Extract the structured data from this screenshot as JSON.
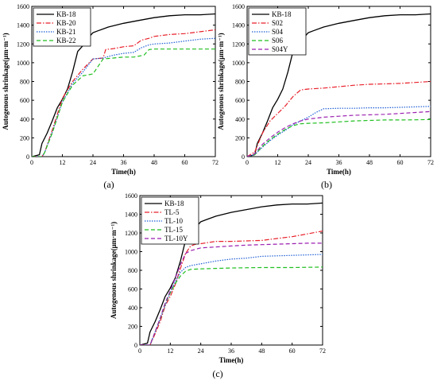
{
  "chart_data": [
    {
      "type": "line",
      "panel_label": "(a)",
      "xlabel": "Time(h)",
      "ylabel": "Autogenous shrinkage(μm·m⁻¹)",
      "xlim": [
        0,
        72
      ],
      "ylim": [
        0,
        1600
      ],
      "xticks": [
        0,
        12,
        24,
        36,
        48,
        60,
        72
      ],
      "yticks": [
        0,
        200,
        400,
        600,
        800,
        1000,
        1200,
        1400,
        1600
      ],
      "grid": false,
      "legend_position": "top-left",
      "series": [
        {
          "name": "KB-18",
          "color": "#000000",
          "dash": "solid",
          "x": [
            0,
            3,
            4,
            6,
            8,
            10,
            12,
            14,
            16,
            18,
            20,
            22,
            24,
            26,
            30,
            36,
            42,
            48,
            54,
            60,
            66,
            72
          ],
          "y": [
            0,
            20,
            140,
            250,
            380,
            520,
            610,
            720,
            900,
            1120,
            1180,
            1260,
            1320,
            1340,
            1380,
            1420,
            1450,
            1480,
            1500,
            1510,
            1510,
            1520
          ]
        },
        {
          "name": "KB-20",
          "color": "#e8202a",
          "dash": "dashdot",
          "x": [
            0,
            4,
            5,
            8,
            12,
            16,
            20,
            24,
            28,
            29,
            32,
            36,
            40,
            43,
            46,
            48,
            54,
            60,
            66,
            72
          ],
          "y": [
            0,
            0,
            40,
            280,
            620,
            800,
            930,
            1040,
            1050,
            1140,
            1150,
            1170,
            1180,
            1240,
            1260,
            1280,
            1300,
            1310,
            1330,
            1350
          ]
        },
        {
          "name": "KB-21",
          "color": "#1f5fd6",
          "dash": "dotted",
          "x": [
            0,
            4,
            5,
            8,
            12,
            16,
            20,
            24,
            28,
            32,
            36,
            40,
            43,
            46,
            48,
            54,
            60,
            66,
            72
          ],
          "y": [
            0,
            0,
            40,
            260,
            580,
            780,
            900,
            1040,
            1050,
            1080,
            1100,
            1110,
            1160,
            1190,
            1200,
            1210,
            1230,
            1250,
            1260
          ]
        },
        {
          "name": "KB-22",
          "color": "#1fbf1f",
          "dash": "dashed",
          "x": [
            0,
            4,
            5,
            8,
            12,
            16,
            20,
            24,
            28,
            32,
            36,
            40,
            44,
            46,
            48,
            60,
            72
          ],
          "y": [
            0,
            0,
            40,
            250,
            580,
            760,
            860,
            880,
            1040,
            1050,
            1060,
            1060,
            1080,
            1140,
            1145,
            1145,
            1145
          ]
        }
      ]
    },
    {
      "type": "line",
      "panel_label": "(b)",
      "xlabel": "Time(h)",
      "ylabel": "Autogenous shrinkage(μm·m⁻¹)",
      "xlim": [
        0,
        72
      ],
      "ylim": [
        0,
        1600
      ],
      "xticks": [
        0,
        12,
        24,
        36,
        48,
        60,
        72
      ],
      "yticks": [
        0,
        200,
        400,
        600,
        800,
        1000,
        1200,
        1400,
        1600
      ],
      "grid": false,
      "legend_position": "top-left",
      "series": [
        {
          "name": "KB-18",
          "color": "#000000",
          "dash": "solid",
          "x": [
            0,
            3,
            4,
            6,
            8,
            10,
            12,
            14,
            16,
            18,
            20,
            22,
            24,
            26,
            30,
            36,
            42,
            48,
            54,
            60,
            66,
            72
          ],
          "y": [
            0,
            20,
            140,
            250,
            380,
            520,
            610,
            720,
            900,
            1120,
            1180,
            1260,
            1320,
            1340,
            1380,
            1420,
            1450,
            1480,
            1500,
            1510,
            1510,
            1520
          ]
        },
        {
          "name": "S02",
          "color": "#e8202a",
          "dash": "dashdot",
          "x": [
            0,
            3,
            6,
            9,
            12,
            15,
            18,
            21,
            24,
            30,
            36,
            42,
            48,
            54,
            60,
            66,
            72
          ],
          "y": [
            0,
            50,
            250,
            380,
            460,
            540,
            640,
            710,
            720,
            730,
            745,
            760,
            770,
            775,
            780,
            790,
            800
          ]
        },
        {
          "name": "S04",
          "color": "#1f5fd6",
          "dash": "dotted",
          "x": [
            0,
            3,
            6,
            9,
            12,
            15,
            18,
            21,
            24,
            27,
            30,
            36,
            42,
            48,
            54,
            60,
            66,
            72
          ],
          "y": [
            0,
            20,
            100,
            170,
            230,
            280,
            340,
            380,
            420,
            470,
            510,
            515,
            515,
            520,
            520,
            525,
            530,
            535
          ]
        },
        {
          "name": "S06",
          "color": "#1fbf1f",
          "dash": "dashed",
          "x": [
            0,
            3,
            6,
            9,
            12,
            15,
            18,
            21,
            24,
            30,
            36,
            42,
            48,
            54,
            60,
            66,
            72
          ],
          "y": [
            0,
            20,
            110,
            180,
            240,
            290,
            330,
            350,
            355,
            360,
            370,
            380,
            385,
            390,
            390,
            392,
            395
          ]
        },
        {
          "name": "S04Y",
          "color": "#9b1fb0",
          "dash": "dashed",
          "x": [
            0,
            3,
            6,
            9,
            12,
            15,
            18,
            21,
            24,
            27,
            30,
            36,
            42,
            48,
            54,
            60,
            66,
            72
          ],
          "y": [
            0,
            30,
            130,
            200,
            260,
            310,
            350,
            380,
            400,
            410,
            420,
            430,
            440,
            445,
            450,
            460,
            470,
            480
          ]
        }
      ]
    },
    {
      "type": "line",
      "panel_label": "(c)",
      "xlabel": "Time(h)",
      "ylabel": "Autogenous shrinkage(μm·m⁻¹)",
      "xlim": [
        0,
        72
      ],
      "ylim": [
        0,
        1600
      ],
      "xticks": [
        0,
        12,
        24,
        36,
        48,
        60,
        72
      ],
      "yticks": [
        0,
        200,
        400,
        600,
        800,
        1000,
        1200,
        1400,
        1600
      ],
      "grid": false,
      "legend_position": "top-left",
      "series": [
        {
          "name": "KB-18",
          "color": "#000000",
          "dash": "solid",
          "x": [
            0,
            3,
            4,
            6,
            8,
            10,
            12,
            14,
            16,
            18,
            20,
            22,
            24,
            26,
            30,
            36,
            42,
            48,
            54,
            60,
            66,
            72
          ],
          "y": [
            0,
            20,
            140,
            250,
            380,
            520,
            610,
            720,
            900,
            1120,
            1180,
            1260,
            1320,
            1340,
            1380,
            1420,
            1450,
            1480,
            1500,
            1510,
            1510,
            1520
          ]
        },
        {
          "name": "TL-5",
          "color": "#e8202a",
          "dash": "dashdot",
          "x": [
            0,
            4,
            6,
            8,
            10,
            12,
            14,
            16,
            18,
            20,
            22,
            24,
            30,
            36,
            42,
            48,
            54,
            60,
            66,
            72
          ],
          "y": [
            0,
            0,
            120,
            250,
            420,
            520,
            650,
            820,
            980,
            1060,
            1080,
            1085,
            1110,
            1110,
            1115,
            1120,
            1140,
            1160,
            1190,
            1220
          ]
        },
        {
          "name": "TL-10",
          "color": "#1f5fd6",
          "dash": "dotted",
          "x": [
            0,
            4,
            6,
            8,
            10,
            12,
            14,
            16,
            18,
            20,
            22,
            24,
            30,
            36,
            42,
            48,
            54,
            60,
            66,
            72
          ],
          "y": [
            0,
            0,
            140,
            280,
            430,
            560,
            680,
            780,
            830,
            850,
            860,
            870,
            900,
            920,
            930,
            950,
            955,
            960,
            965,
            970
          ]
        },
        {
          "name": "TL-15",
          "color": "#1fbf1f",
          "dash": "dashed",
          "x": [
            0,
            4,
            6,
            8,
            10,
            12,
            14,
            16,
            18,
            20,
            24,
            30,
            36,
            48,
            60,
            72
          ],
          "y": [
            0,
            0,
            140,
            280,
            440,
            560,
            660,
            740,
            790,
            810,
            815,
            820,
            825,
            830,
            830,
            835
          ]
        },
        {
          "name": "TL-10Y",
          "color": "#9b1fb0",
          "dash": "dashed",
          "x": [
            0,
            4,
            6,
            8,
            10,
            12,
            14,
            16,
            18,
            20,
            24,
            30,
            36,
            42,
            48,
            54,
            60,
            66,
            72
          ],
          "y": [
            0,
            0,
            140,
            290,
            450,
            580,
            720,
            860,
            980,
            1010,
            1040,
            1050,
            1060,
            1070,
            1075,
            1080,
            1085,
            1090,
            1090
          ]
        }
      ]
    }
  ]
}
